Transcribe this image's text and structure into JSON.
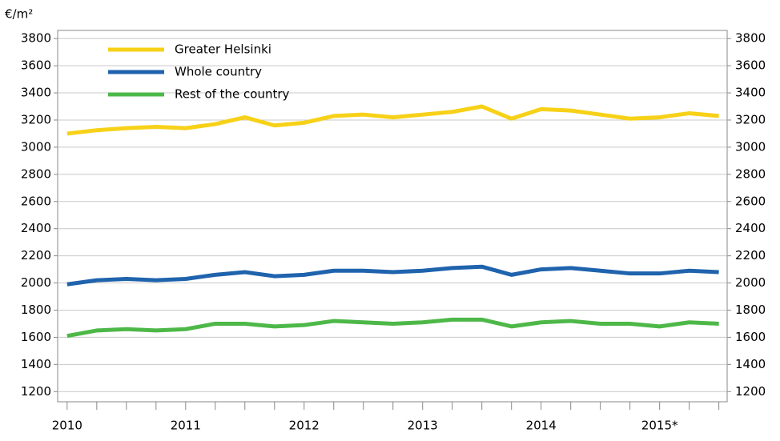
{
  "chart_data": {
    "type": "line",
    "y_label": "€/m²",
    "x": [
      2010,
      2010.25,
      2010.5,
      2010.75,
      2011,
      2011.25,
      2011.5,
      2011.75,
      2012,
      2012.25,
      2012.5,
      2012.75,
      2013,
      2013.25,
      2013.5,
      2013.75,
      2014,
      2014.25,
      2014.5,
      2014.75,
      2015,
      2015.25,
      2015.5
    ],
    "series": [
      {
        "name": "Greater Helsinki",
        "color": "#f7d117",
        "values": [
          3100,
          3125,
          3140,
          3150,
          3140,
          3170,
          3220,
          3160,
          3180,
          3230,
          3240,
          3220,
          3240,
          3260,
          3300,
          3210,
          3280,
          3270,
          3240,
          3210,
          3220,
          3250,
          3230
        ]
      },
      {
        "name": "Whole country",
        "color": "#1f63ad",
        "values": [
          1990,
          2020,
          2030,
          2020,
          2030,
          2060,
          2080,
          2050,
          2060,
          2090,
          2090,
          2080,
          2090,
          2110,
          2120,
          2060,
          2100,
          2110,
          2090,
          2070,
          2070,
          2090,
          2080
        ]
      },
      {
        "name": "Rest of the country",
        "color": "#4db848",
        "values": [
          1610,
          1650,
          1660,
          1650,
          1660,
          1700,
          1700,
          1680,
          1690,
          1720,
          1710,
          1700,
          1710,
          1730,
          1730,
          1680,
          1710,
          1720,
          1700,
          1700,
          1680,
          1710,
          1700
        ]
      }
    ],
    "xlim": [
      2009.92,
      2015.57
    ],
    "xticks": [
      2010,
      2011,
      2012,
      2013,
      2014,
      {
        "value": 2015,
        "label": "2015*"
      }
    ],
    "xminorticks": [
      2010.25,
      2010.5,
      2010.75,
      2011.25,
      2011.5,
      2011.75,
      2012.25,
      2012.5,
      2012.75,
      2013.25,
      2013.5,
      2013.75,
      2014.25,
      2014.5,
      2014.75,
      2015.25,
      2015.5
    ],
    "ylim": [
      1125,
      3860
    ],
    "yticks": [
      1200,
      1400,
      1600,
      1800,
      2000,
      2200,
      2400,
      2600,
      2800,
      3000,
      3200,
      3400,
      3600,
      3800
    ],
    "grid": true
  }
}
